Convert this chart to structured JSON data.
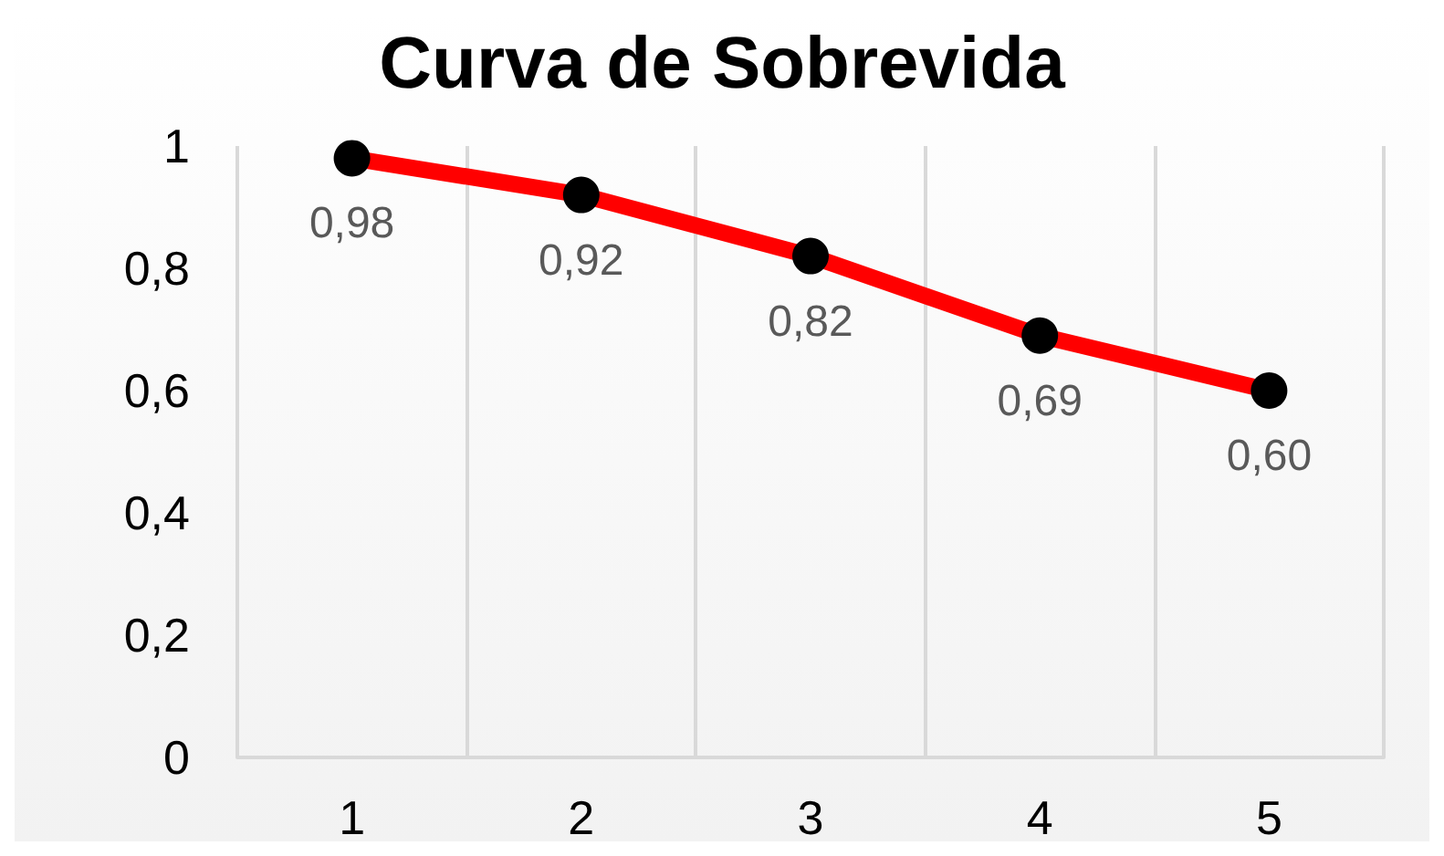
{
  "chart_data": {
    "type": "line",
    "title": "Curva de Sobrevida",
    "categories": [
      "1",
      "2",
      "3",
      "4",
      "5"
    ],
    "series": [
      {
        "color": "#ff0000",
        "values": [
          0.98,
          0.92,
          0.82,
          0.69,
          0.6
        ],
        "value_labels": [
          "0,98",
          "0,92",
          "0,82",
          "0,69",
          "0,60"
        ]
      }
    ],
    "ylim": [
      0,
      1
    ],
    "yticks": [
      0,
      {
        "value": 0.2,
        "label": "0,2"
      },
      {
        "value": 0.4,
        "label": "0,4"
      },
      {
        "value": 0.6,
        "label": "0,6"
      },
      {
        "value": 0.8,
        "label": "0,8"
      },
      1
    ],
    "grid": "x",
    "marker": "circle",
    "line_style": "solid"
  }
}
